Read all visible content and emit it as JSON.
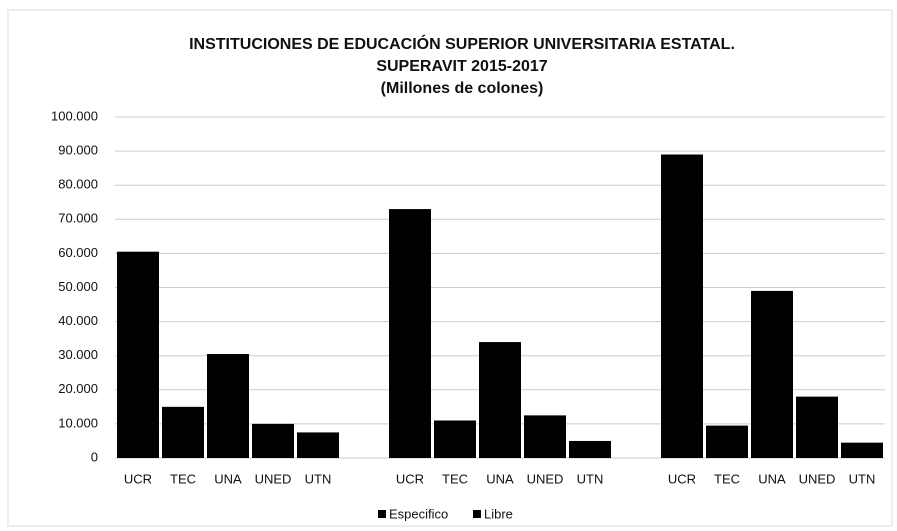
{
  "chart_data": {
    "type": "bar",
    "title": [
      "INSTITUCIONES DE EDUCACIÓN SUPERIOR UNIVERSITARIA ESTATAL.",
      "SUPERAVIT 2015-2017",
      "(Millones de colones)"
    ],
    "groups": [
      {
        "categories": [
          "UCR",
          "TEC",
          "UNA",
          "UNED",
          "UTN"
        ],
        "values": [
          60500,
          15000,
          30500,
          10000,
          7500
        ]
      },
      {
        "categories": [
          "UCR",
          "TEC",
          "UNA",
          "UNED",
          "UTN"
        ],
        "values": [
          73000,
          11000,
          34000,
          12500,
          5000
        ]
      },
      {
        "categories": [
          "UCR",
          "TEC",
          "UNA",
          "UNED",
          "UTN"
        ],
        "values": [
          89000,
          9500,
          49000,
          18000,
          4500
        ]
      }
    ],
    "color": "#000000",
    "legend": [
      "Especifico",
      "Libre"
    ],
    "ylim": [
      0,
      100000
    ],
    "yticks": [
      0,
      {
        "value": 10000,
        "label": "10.000"
      },
      {
        "value": 20000,
        "label": "20.000"
      },
      {
        "value": 30000,
        "label": "30.000"
      },
      {
        "value": 40000,
        "label": "40.000"
      },
      {
        "value": 50000,
        "label": "50.000"
      },
      {
        "value": 60000,
        "label": "60.000"
      },
      {
        "value": 70000,
        "label": "70.000"
      },
      {
        "value": 80000,
        "label": "80.000"
      },
      {
        "value": 90000,
        "label": "90.000"
      },
      {
        "value": 100000,
        "label": "100.000"
      }
    ],
    "grid": true
  }
}
